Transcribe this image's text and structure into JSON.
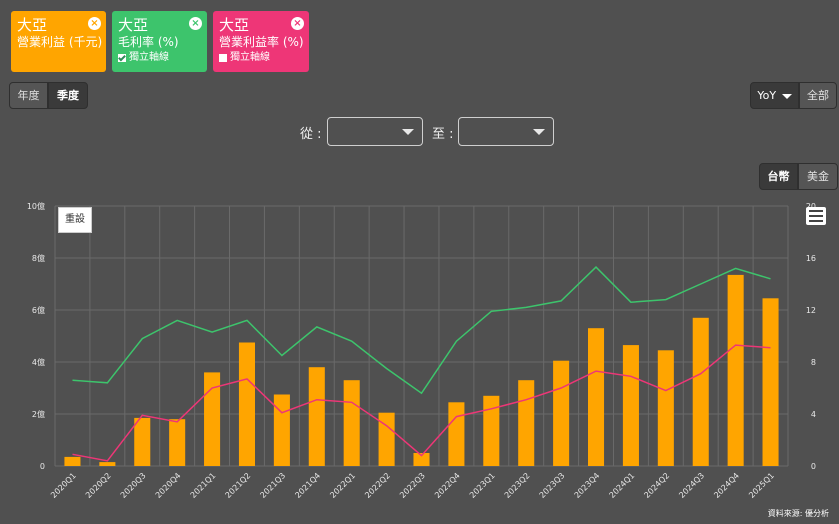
{
  "cards": [
    {
      "company": "大亞",
      "metric": "營業利益 (千元)",
      "color": "#FFA500"
    },
    {
      "company": "大亞",
      "metric": "毛利率 (%)",
      "color": "#3DC46C",
      "option": "獨立軸線",
      "checked": true
    },
    {
      "company": "大亞",
      "metric": "營業利益率 (%)",
      "color": "#EE3677",
      "option": "獨立軸線",
      "checked": false
    }
  ],
  "period_tabs": {
    "annual": "年度",
    "quarterly": "季度"
  },
  "compare_select": {
    "value": "YoY",
    "all": "全部"
  },
  "range": {
    "from_label": "從 :",
    "to_label": "至 :"
  },
  "currency": {
    "twd": "台幣",
    "usd": "美金"
  },
  "reset_label": "重設",
  "source": "資料來源: 優分析",
  "chart_data": {
    "type": "bar",
    "categories": [
      "2020Q1",
      "2020Q2",
      "2020Q3",
      "2020Q4",
      "2021Q1",
      "2021Q2",
      "2021Q3",
      "2021Q4",
      "2022Q1",
      "2022Q2",
      "2022Q3",
      "2022Q4",
      "2023Q1",
      "2023Q2",
      "2023Q3",
      "2023Q4",
      "2024Q1",
      "2024Q2",
      "2024Q3",
      "2024Q4",
      "2025Q1"
    ],
    "left_axis": {
      "ticks": [
        "0",
        "2億",
        "4億",
        "6億",
        "8億",
        "10億"
      ],
      "ylim": [
        0,
        10
      ]
    },
    "right_axis": {
      "ticks": [
        "0",
        "4",
        "8",
        "12",
        "16",
        "20"
      ],
      "ylim": [
        0,
        20
      ]
    },
    "series": [
      {
        "name": "營業利益 (千元)",
        "type": "bar",
        "axis": "left",
        "color": "#FFA500",
        "values": [
          0.35,
          0.15,
          1.85,
          1.8,
          3.6,
          4.75,
          2.75,
          3.8,
          3.3,
          2.05,
          0.5,
          2.45,
          2.7,
          3.3,
          4.05,
          5.3,
          4.65,
          4.45,
          5.7,
          7.35,
          6.45
        ]
      },
      {
        "name": "毛利率 (%)",
        "type": "line",
        "axis": "right",
        "color": "#3DC46C",
        "values": [
          6.6,
          6.4,
          9.8,
          11.2,
          10.3,
          11.2,
          8.5,
          10.7,
          9.6,
          7.5,
          5.6,
          9.6,
          11.9,
          12.2,
          12.7,
          15.3,
          12.6,
          12.8,
          14.0,
          15.2,
          14.4
        ]
      },
      {
        "name": "營業利益率 (%)",
        "type": "line",
        "axis": "right",
        "color": "#EE3677",
        "values": [
          0.9,
          0.4,
          3.9,
          3.4,
          6.0,
          6.7,
          4.1,
          5.1,
          4.9,
          3.1,
          0.8,
          3.8,
          4.4,
          5.1,
          6.0,
          7.3,
          6.9,
          5.8,
          7.1,
          9.3,
          9.1
        ]
      }
    ],
    "grid": true
  }
}
